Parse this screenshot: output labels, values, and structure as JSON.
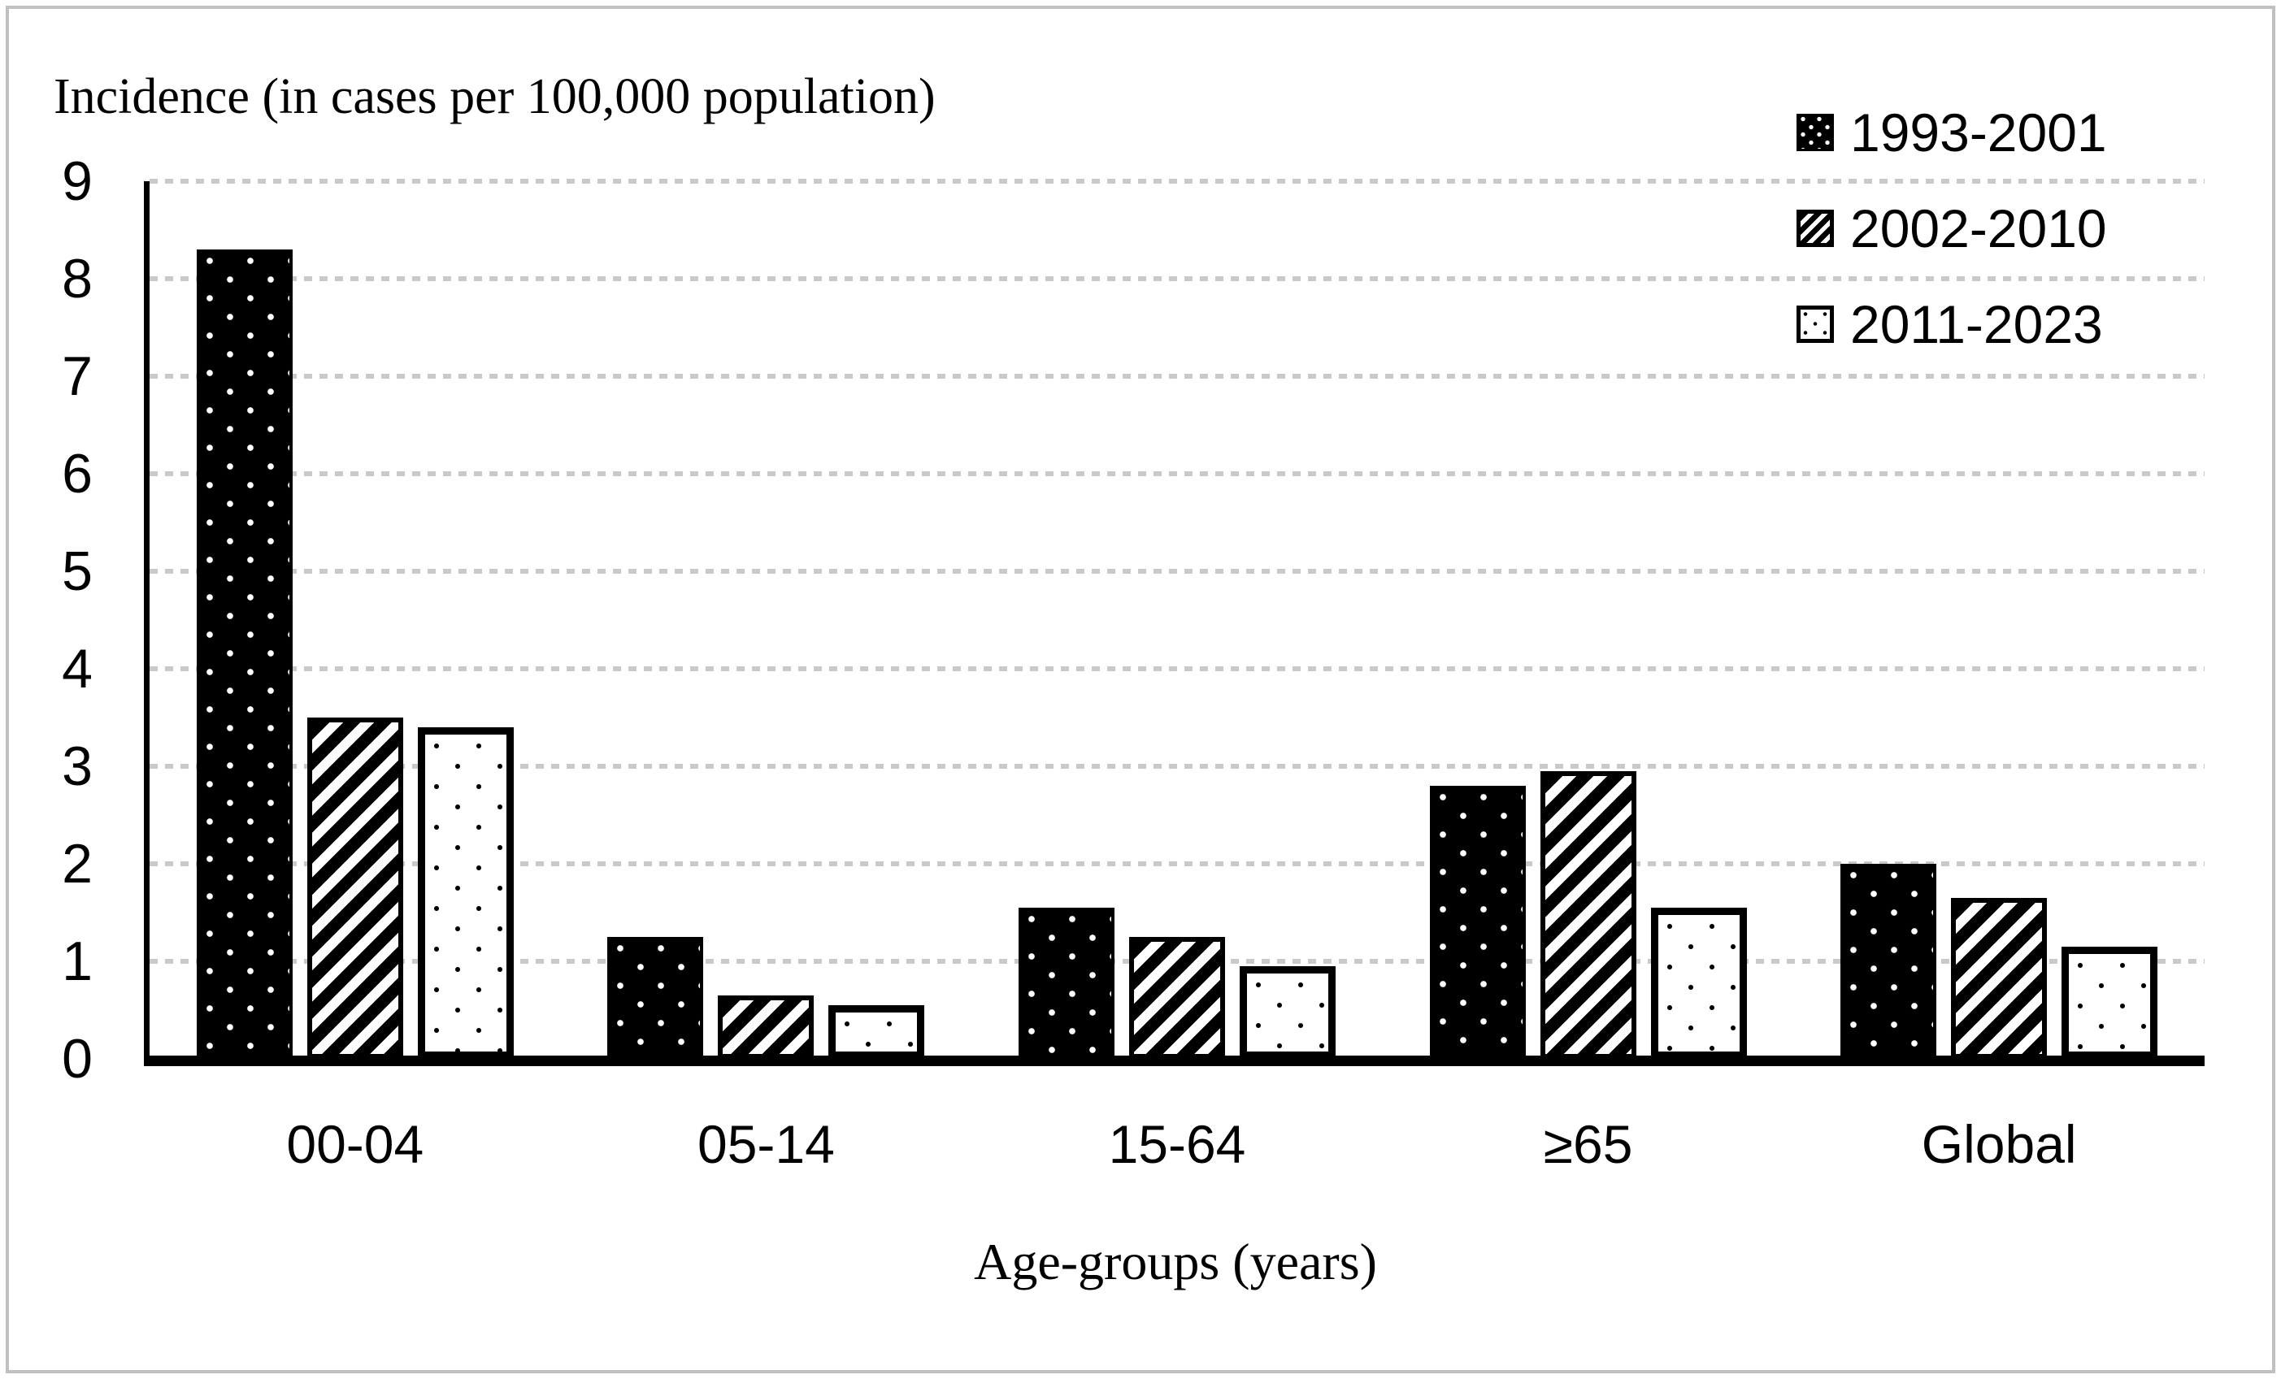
{
  "page": {
    "background": "#ffffff",
    "frame_border_color": "#c0c0c0"
  },
  "chart_data": {
    "type": "bar",
    "title": "",
    "ylabel": "Incidence (in cases per 100,000 population)",
    "xlabel": "Age-groups (years)",
    "categories": [
      "00-04",
      "05-14",
      "15-64",
      "≥65",
      "Global"
    ],
    "series": [
      {
        "name": "1993-2001",
        "pattern": "white-dots-on-black",
        "values": [
          8.3,
          1.25,
          1.55,
          2.8,
          2.0
        ]
      },
      {
        "name": "2002-2010",
        "pattern": "black-diagonal-stripes",
        "values": [
          3.5,
          0.65,
          1.25,
          2.95,
          1.65
        ]
      },
      {
        "name": "2011-2023",
        "pattern": "black-dots-on-white",
        "values": [
          3.4,
          0.55,
          0.95,
          1.55,
          1.15
        ]
      }
    ],
    "ylim": [
      0,
      9
    ],
    "yticks": [
      0,
      1,
      2,
      3,
      4,
      5,
      6,
      7,
      8,
      9
    ],
    "grid": "horizontal-dotted",
    "legend_position": "top-right",
    "colors": {
      "bar_fill": "#000000",
      "gridline": "#c9c9c9",
      "axis": "#000000",
      "text": "#000000"
    }
  }
}
